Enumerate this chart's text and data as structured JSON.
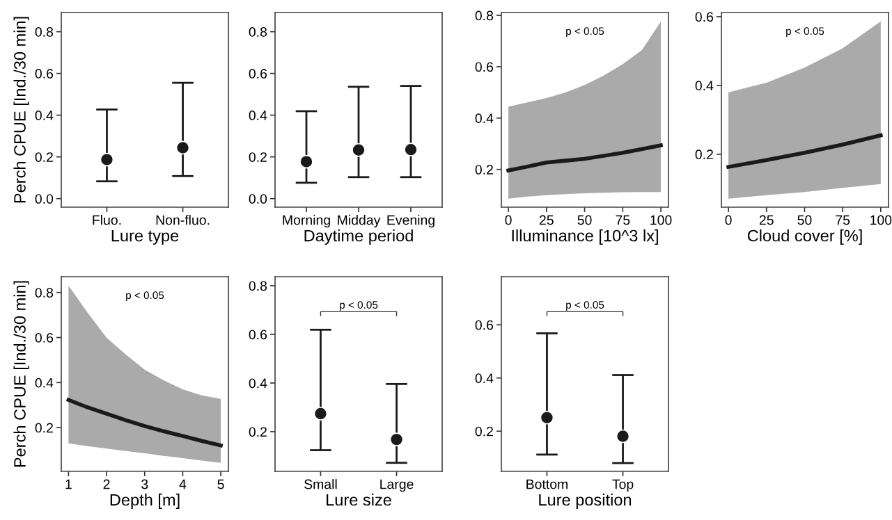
{
  "chart_data": [
    {
      "type": "scatter",
      "ylabel": "Perch CPUE [Ind./30 min]",
      "xlabel": "Lure type",
      "categories": [
        "Fluo.",
        "Non-fluo."
      ],
      "values": [
        0.187,
        0.244
      ],
      "errors": [
        [
          0.083,
          0.427
        ],
        [
          0.108,
          0.555
        ]
      ],
      "color": "#1a1a1a",
      "marker": "circle",
      "ylim": [
        -0.041,
        0.892
      ],
      "yticks": [
        {
          "value": 0,
          "label": "0.0"
        },
        0.2,
        0.4,
        0.6,
        0.8
      ],
      "grid": false,
      "legend": false
    },
    {
      "type": "scatter",
      "xlabel": "Daytime period",
      "categories": [
        "Morning",
        "Midday",
        "Evening"
      ],
      "values": [
        0.177,
        0.233,
        0.235
      ],
      "errors": [
        [
          0.076,
          0.419
        ],
        [
          0.103,
          0.536
        ],
        [
          0.103,
          0.54
        ]
      ],
      "color": "#1a1a1a",
      "marker": "circle",
      "ylim": [
        -0.041,
        0.892
      ],
      "yticks": [
        {
          "value": 0,
          "label": "0.0"
        },
        0.2,
        0.4,
        0.6,
        0.8
      ],
      "grid": false,
      "legend": false
    },
    {
      "type": "line",
      "xlabel": "Illuminance [10^3 lx]",
      "annotations": [
        "p < 0.05"
      ],
      "x": [
        0,
        12.5,
        25,
        37.5,
        50,
        62.5,
        75,
        87.5,
        100
      ],
      "series": [
        {
          "color": "#1a1a1a",
          "values": [
            0.196,
            0.211,
            0.227,
            0.234,
            0.241,
            0.253,
            0.265,
            0.279,
            0.294
          ],
          "lower": [
            0.086,
            0.094,
            0.1,
            0.104,
            0.107,
            0.109,
            0.111,
            0.112,
            0.112
          ],
          "upper": [
            0.444,
            0.461,
            0.478,
            0.5,
            0.529,
            0.565,
            0.61,
            0.664,
            0.776
          ]
        }
      ],
      "xlim": [
        -4.6,
        105
      ],
      "xticks": [
        0,
        25,
        50,
        75,
        100
      ],
      "ylim": [
        0.053,
        0.811
      ],
      "yticks": [
        0.2,
        0.4,
        0.6,
        0.8
      ],
      "grid": false,
      "legend": false
    },
    {
      "type": "line",
      "xlabel": "Cloud cover [%]",
      "annotations": [
        "p < 0.05"
      ],
      "x": [
        0,
        25,
        50,
        75,
        100
      ],
      "series": [
        {
          "color": "#1a1a1a",
          "values": [
            0.163,
            0.183,
            0.204,
            0.228,
            0.255
          ],
          "lower": [
            0.071,
            0.081,
            0.09,
            0.102,
            0.113
          ],
          "upper": [
            0.38,
            0.408,
            0.452,
            0.508,
            0.586
          ]
        }
      ],
      "xlim": [
        -4.6,
        105.1
      ],
      "xticks": [
        0,
        25,
        50,
        75,
        100
      ],
      "ylim": [
        0.046,
        0.612
      ],
      "yticks": [
        0.2,
        0.4,
        0.6
      ],
      "grid": false,
      "legend": false
    },
    {
      "type": "line",
      "ylabel": "Perch CPUE [Ind./30 min]",
      "xlabel": "Depth [m]",
      "annotations": [
        "p < 0.05"
      ],
      "x": [
        1,
        1.5,
        2,
        2.5,
        3,
        3.5,
        4,
        4.5,
        5
      ],
      "series": [
        {
          "color": "#1a1a1a",
          "values": [
            0.323,
            0.29,
            0.262,
            0.233,
            0.207,
            0.184,
            0.163,
            0.141,
            0.121
          ],
          "lower": [
            0.13,
            0.118,
            0.107,
            0.096,
            0.086,
            0.075,
            0.065,
            0.054,
            0.044
          ],
          "upper": [
            0.831,
            0.71,
            0.599,
            0.525,
            0.457,
            0.41,
            0.37,
            0.343,
            0.328
          ]
        }
      ],
      "xlim": [
        0.81,
        5.2
      ],
      "xticks": [
        1,
        2,
        3,
        4,
        5
      ],
      "ylim": [
        0.006,
        0.87
      ],
      "yticks": [
        0.2,
        0.4,
        0.6,
        0.8
      ],
      "grid": false,
      "legend": false
    },
    {
      "type": "scatter",
      "xlabel": "Lure size",
      "annotations": [
        "p < 0.05"
      ],
      "categories": [
        "Small",
        "Large"
      ],
      "values": [
        0.274,
        0.168
      ],
      "errors": [
        [
          0.124,
          0.619
        ],
        [
          0.072,
          0.396
        ]
      ],
      "color": "#1a1a1a",
      "marker": "circle",
      "ylim": [
        0.037,
        0.837
      ],
      "yticks": [
        0.2,
        0.4,
        0.6,
        0.8
      ],
      "grid": false,
      "legend": false
    },
    {
      "type": "scatter",
      "xlabel": "Lure position",
      "annotations": [
        "p < 0.05"
      ],
      "categories": [
        "Bottom",
        "Top"
      ],
      "values": [
        0.251,
        0.181
      ],
      "errors": [
        [
          0.112,
          0.568
        ],
        [
          0.08,
          0.411
        ]
      ],
      "color": "#1a1a1a",
      "marker": "circle",
      "ylim": [
        0.049,
        0.781
      ],
      "yticks": [
        0.2,
        0.4,
        0.6
      ],
      "grid": false,
      "legend": false
    }
  ]
}
